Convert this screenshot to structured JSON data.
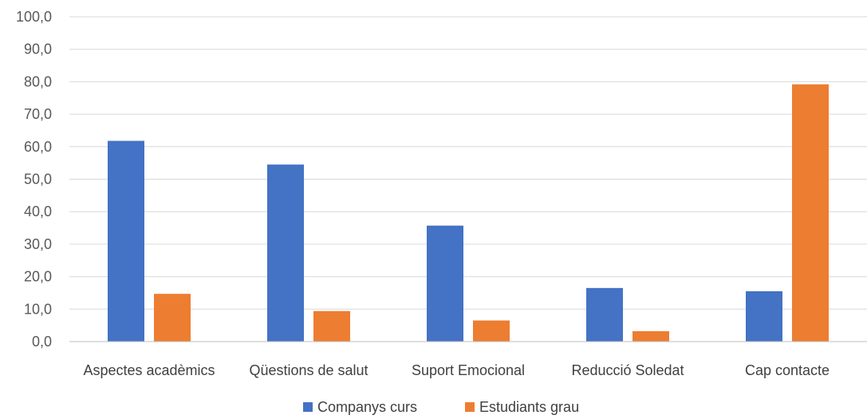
{
  "chart_data": {
    "type": "bar",
    "categories": [
      "Aspectes acadèmics",
      "Qüestions de salut",
      "Suport Emocional",
      "Reducció Soledat",
      "Cap contacte"
    ],
    "series": [
      {
        "name": "Companys curs",
        "color": "#4472c4",
        "values": [
          61.8,
          54.5,
          35.7,
          16.5,
          15.5
        ]
      },
      {
        "name": "Estudiants grau",
        "color": "#ed7d31",
        "values": [
          14.7,
          9.4,
          6.5,
          3.2,
          79.2
        ]
      }
    ],
    "ylim": [
      0,
      100
    ],
    "yticks": [
      "0,0",
      "10,0",
      "20,0",
      "30,0",
      "40,0",
      "50,0",
      "60,0",
      "70,0",
      "80,0",
      "90,0",
      "100,0"
    ],
    "grid": true,
    "legend": "bottom"
  }
}
